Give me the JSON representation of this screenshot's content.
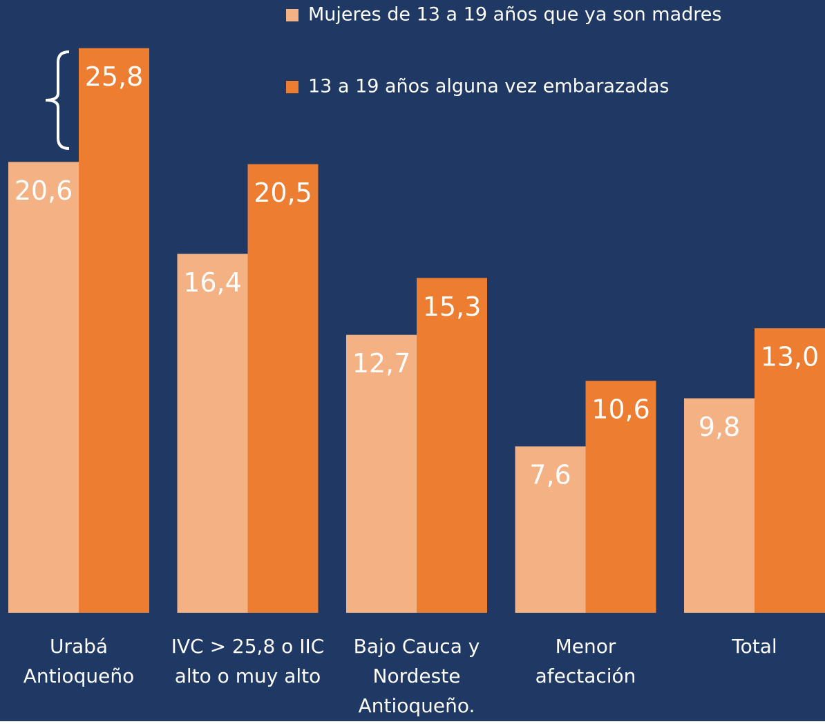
{
  "chart_data": {
    "type": "bar",
    "categories": [
      [
        "Urabá",
        "Antioqueño"
      ],
      [
        "IVC > 25,8 o IIC",
        "alto o muy alto"
      ],
      [
        "Bajo Cauca y",
        "Nordeste",
        "Antioqueño."
      ],
      [
        "Menor",
        "afectación"
      ],
      [
        "Total"
      ]
    ],
    "series": [
      {
        "name": "Mujeres de 13 a 19 años que ya son madres",
        "color": "#F4B183",
        "values": [
          20.6,
          16.4,
          12.7,
          7.6,
          9.8
        ],
        "value_labels": [
          "20,6",
          "16,4",
          "12,7",
          "7,6",
          "9,8"
        ]
      },
      {
        "name": "13 a 19 años alguna vez embarazadas",
        "color": "#ED7D31",
        "values": [
          25.8,
          20.5,
          15.3,
          10.6,
          13.0
        ],
        "value_labels": [
          "25,8",
          "20,5",
          "15,3",
          "10,6",
          "13,0"
        ]
      }
    ],
    "ylim": [
      0,
      28
    ],
    "legend": "top-right",
    "background": "#203864"
  }
}
